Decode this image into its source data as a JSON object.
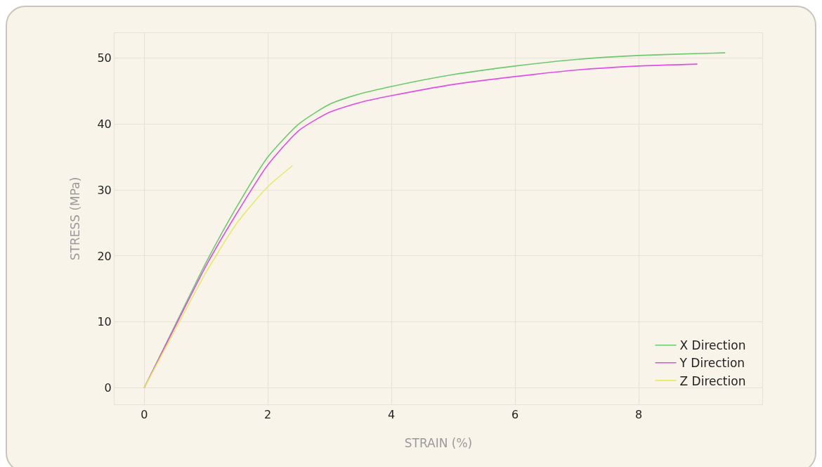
{
  "chart_data": {
    "type": "line",
    "xlabel": "STRAIN (%)",
    "ylabel": "STRESS (MPa)",
    "xlim": [
      -0.48,
      10.0
    ],
    "ylim": [
      -2.5,
      53.8
    ],
    "xticks": [
      0,
      2,
      4,
      6,
      8
    ],
    "yticks": [
      0,
      10,
      20,
      30,
      40,
      50
    ],
    "grid": true,
    "legend": "bottom right",
    "marker": "none",
    "line_style": "solid",
    "series": [
      {
        "name": "X Direction",
        "color": "#6cc96c",
        "x": [
          0,
          0.5,
          1,
          1.5,
          2,
          2.5,
          3,
          3.5,
          4,
          5,
          6,
          7,
          8,
          9,
          9.4
        ],
        "values": [
          0,
          9.5,
          19,
          27.5,
          35,
          40,
          43,
          44.6,
          45.7,
          47.5,
          48.8,
          49.8,
          50.4,
          50.7,
          50.8
        ]
      },
      {
        "name": "Y Direction",
        "color": "#e04ee8",
        "x": [
          0,
          0.5,
          1,
          1.5,
          2,
          2.5,
          3,
          3.5,
          4,
          5,
          6,
          7,
          8,
          8.95
        ],
        "values": [
          0,
          9.3,
          18.5,
          26.5,
          33.8,
          39,
          41.8,
          43.3,
          44.3,
          46,
          47.2,
          48.2,
          48.8,
          49.1
        ]
      },
      {
        "name": "Z Direction",
        "color": "#e8e86a",
        "x": [
          0,
          0.5,
          1,
          1.5,
          2,
          2.4
        ],
        "values": [
          0,
          8.8,
          17.5,
          25,
          30.5,
          33.7
        ]
      }
    ]
  }
}
